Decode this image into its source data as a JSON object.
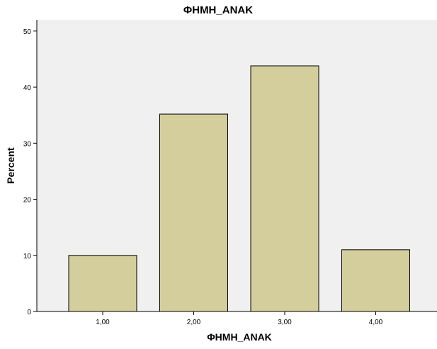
{
  "chart_data": {
    "type": "bar",
    "title": "ΦΗΜΗ_ΑΝΑΚ",
    "xlabel": "ΦΗΜΗ_ΑΝΑΚ",
    "ylabel": "Percent",
    "categories": [
      "1,00",
      "2,00",
      "3,00",
      "4,00"
    ],
    "values": [
      10.0,
      35.2,
      43.8,
      11.0
    ],
    "ylim": [
      0,
      52
    ],
    "yticks": [
      0,
      10,
      20,
      30,
      40,
      50
    ],
    "grid": false,
    "legend": "none",
    "colors": {
      "bar_fill": "#d3ce9c",
      "bar_stroke": "#000000",
      "plot_background": "#f0f0f0",
      "axis": "#000000"
    }
  }
}
